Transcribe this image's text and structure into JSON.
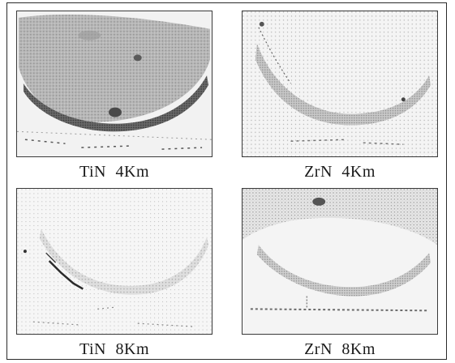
{
  "figure": {
    "panels": [
      {
        "material": "TiN",
        "speed": "4Km",
        "label": "TiN  4Km"
      },
      {
        "material": "ZrN",
        "speed": "4Km",
        "label": "ZrN  4Km"
      },
      {
        "material": "TiN",
        "speed": "8Km",
        "label": "TiN  8Km"
      },
      {
        "material": "ZrN",
        "speed": "8Km",
        "label": "ZrN  8Km"
      }
    ]
  }
}
